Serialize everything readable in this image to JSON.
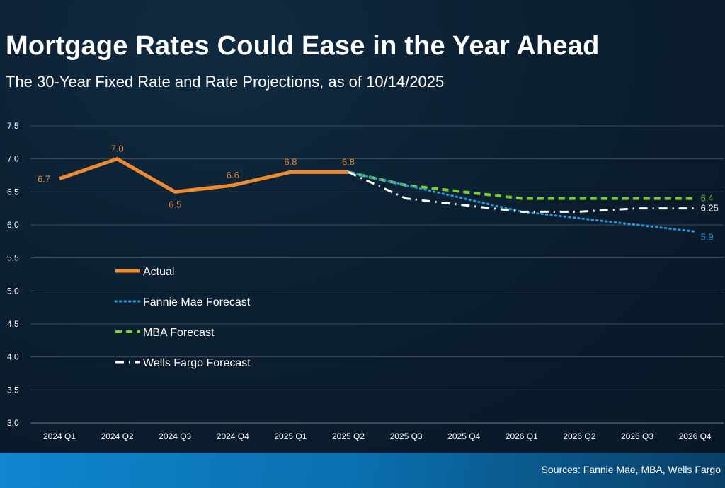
{
  "title": "Mortgage Rates Could Ease in the Year Ahead",
  "subtitle": "The 30-Year Fixed Rate and Rate Projections, as of 10/14/2025",
  "footer": {
    "sources": "Sources: Fannie Mae, MBA, Wells Fargo"
  },
  "chart_data": {
    "type": "line",
    "categories": [
      "2024 Q1",
      "2024 Q2",
      "2024 Q3",
      "2024 Q4",
      "2025 Q1",
      "2025 Q2",
      "2025 Q3",
      "2025 Q4",
      "2026 Q1",
      "2026 Q2",
      "2026 Q3",
      "2026 Q4"
    ],
    "ylim": [
      3.0,
      7.5
    ],
    "yticks": [
      "7.5",
      "7.0",
      "6.5",
      "6.0",
      "5.5",
      "5.0",
      "4.5",
      "4.0",
      "3.5",
      "3.0"
    ],
    "grid": true,
    "legend_position": "left-center",
    "series": [
      {
        "name": "Actual",
        "color": "#f08a2c",
        "style": "solid",
        "values": [
          6.7,
          7.0,
          6.5,
          6.6,
          6.8,
          6.8,
          null,
          null,
          null,
          null,
          null,
          null
        ],
        "labels": [
          "6.7",
          "7.0",
          "6.5",
          "6.6",
          "6.8",
          "6.8"
        ]
      },
      {
        "name": "Fannie Mae Forecast",
        "color": "#1a9ce0",
        "style": "dotted",
        "values": [
          null,
          null,
          null,
          null,
          null,
          6.8,
          6.6,
          6.4,
          6.2,
          6.1,
          6.0,
          5.9
        ],
        "end_label": "5.9"
      },
      {
        "name": "MBA Forecast",
        "color": "#7ccc2a",
        "style": "dashed",
        "values": [
          null,
          null,
          null,
          null,
          null,
          6.8,
          6.6,
          6.5,
          6.4,
          6.4,
          6.4,
          6.4
        ],
        "end_label": "6.4"
      },
      {
        "name": "Wells Fargo Forecast",
        "color": "#ffffff",
        "style": "dashdot",
        "values": [
          null,
          null,
          null,
          null,
          null,
          6.8,
          6.4,
          6.3,
          6.2,
          6.2,
          6.25,
          6.25
        ],
        "end_label": "6.25"
      }
    ]
  }
}
